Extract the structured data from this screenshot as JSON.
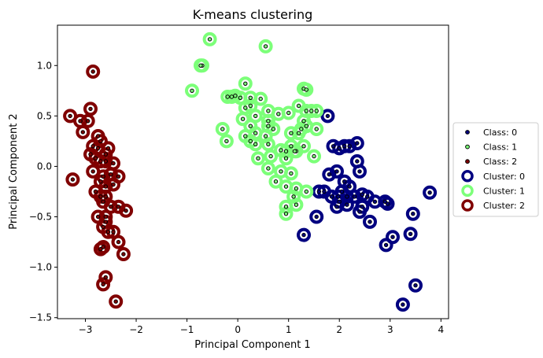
{
  "chart_data": {
    "type": "scatter",
    "title": "K-means clustering",
    "xlabel": "Principal Component 1",
    "ylabel": "Principal Component 2",
    "xlim": [
      -3.55,
      4.15
    ],
    "ylim": [
      -1.51,
      1.4
    ],
    "xticks": [
      -3,
      -2,
      -1,
      0,
      1,
      2,
      3,
      4
    ],
    "yticks": [
      -1.5,
      -1.0,
      -0.5,
      0.0,
      0.5,
      1.0
    ],
    "xtick_labels": [
      "−3",
      "−2",
      "−1",
      "0",
      "1",
      "2",
      "3",
      "4"
    ],
    "ytick_labels": [
      "−1.5",
      "−1.0",
      "−0.5",
      "0.0",
      "0.5",
      "1.0"
    ],
    "grid": false,
    "legend_position": "center-right (outside axes)",
    "legend": [
      {
        "label": "Class: 0",
        "kind": "class",
        "index": 0
      },
      {
        "label": "Class: 1",
        "kind": "class",
        "index": 1
      },
      {
        "label": "Class: 2",
        "kind": "class",
        "index": 2
      },
      {
        "label": "Cluster: 0",
        "kind": "cluster",
        "index": 0
      },
      {
        "label": "Cluster: 1",
        "kind": "cluster",
        "index": 1
      },
      {
        "label": "Cluster: 2",
        "kind": "cluster",
        "index": 2
      }
    ],
    "class_colors": [
      "#000080",
      "#7cff79",
      "#800000"
    ],
    "cluster_colors": [
      "#000080",
      "#7cff79",
      "#800000"
    ],
    "inner_edge_color": "#000000",
    "cluster_series": [
      {
        "name": "Cluster: 0",
        "points": [
          [
            1.77,
            0.5
          ],
          [
            1.88,
            0.2
          ],
          [
            2.0,
            0.18
          ],
          [
            2.1,
            0.2
          ],
          [
            2.2,
            0.2
          ],
          [
            2.35,
            0.23
          ],
          [
            1.8,
            -0.08
          ],
          [
            1.95,
            -0.05
          ],
          [
            2.1,
            -0.15
          ],
          [
            2.2,
            -0.2
          ],
          [
            2.35,
            0.05
          ],
          [
            2.4,
            -0.05
          ],
          [
            1.7,
            -0.25
          ],
          [
            1.6,
            -0.25
          ],
          [
            1.85,
            -0.3
          ],
          [
            2.0,
            -0.35
          ],
          [
            2.15,
            -0.3
          ],
          [
            2.3,
            -0.3
          ],
          [
            2.45,
            -0.28
          ],
          [
            2.55,
            -0.3
          ],
          [
            2.7,
            -0.35
          ],
          [
            1.95,
            -0.4
          ],
          [
            2.15,
            -0.38
          ],
          [
            2.4,
            -0.45
          ],
          [
            1.55,
            -0.5
          ],
          [
            2.6,
            -0.55
          ],
          [
            2.9,
            -0.35
          ],
          [
            2.95,
            -0.37
          ],
          [
            3.45,
            -0.47
          ],
          [
            3.78,
            -0.26
          ],
          [
            1.3,
            -0.68
          ],
          [
            2.45,
            -0.4
          ],
          [
            3.05,
            -0.7
          ],
          [
            2.92,
            -0.78
          ],
          [
            3.4,
            -0.67
          ],
          [
            3.5,
            -1.18
          ],
          [
            3.25,
            -1.37
          ],
          [
            1.98,
            -0.3
          ],
          [
            2.05,
            -0.25
          ]
        ]
      },
      {
        "name": "Cluster: 1",
        "points": [
          [
            -0.55,
            1.26
          ],
          [
            0.55,
            1.19
          ],
          [
            -0.7,
            1.0
          ],
          [
            -0.73,
            1.0
          ],
          [
            -0.9,
            0.75
          ],
          [
            0.15,
            0.82
          ],
          [
            1.3,
            0.77
          ],
          [
            1.35,
            0.76
          ],
          [
            -0.05,
            0.7
          ],
          [
            -0.12,
            0.69
          ],
          [
            -0.2,
            0.69
          ],
          [
            0.05,
            0.68
          ],
          [
            0.25,
            0.68
          ],
          [
            0.45,
            0.67
          ],
          [
            0.15,
            0.58
          ],
          [
            0.25,
            0.6
          ],
          [
            0.6,
            0.55
          ],
          [
            0.8,
            0.52
          ],
          [
            1.0,
            0.53
          ],
          [
            1.2,
            0.6
          ],
          [
            1.35,
            0.55
          ],
          [
            1.45,
            0.55
          ],
          [
            1.55,
            0.55
          ],
          [
            0.35,
            0.5
          ],
          [
            0.1,
            0.47
          ],
          [
            0.6,
            0.45
          ],
          [
            1.3,
            0.45
          ],
          [
            -0.3,
            0.37
          ],
          [
            0.25,
            0.4
          ],
          [
            0.6,
            0.4
          ],
          [
            0.7,
            0.37
          ],
          [
            1.25,
            0.37
          ],
          [
            1.35,
            0.4
          ],
          [
            1.55,
            0.37
          ],
          [
            0.15,
            0.3
          ],
          [
            0.35,
            0.33
          ],
          [
            0.55,
            0.3
          ],
          [
            1.05,
            0.33
          ],
          [
            1.2,
            0.33
          ],
          [
            -0.22,
            0.25
          ],
          [
            0.25,
            0.25
          ],
          [
            0.35,
            0.22
          ],
          [
            0.85,
            0.16
          ],
          [
            0.95,
            0.15
          ],
          [
            1.05,
            0.2
          ],
          [
            1.15,
            0.15
          ],
          [
            1.3,
            0.2
          ],
          [
            0.4,
            0.08
          ],
          [
            0.65,
            0.1
          ],
          [
            0.95,
            0.08
          ],
          [
            1.12,
            0.15
          ],
          [
            0.6,
            -0.02
          ],
          [
            0.85,
            -0.05
          ],
          [
            1.05,
            -0.07
          ],
          [
            0.75,
            -0.15
          ],
          [
            0.95,
            -0.2
          ],
          [
            1.15,
            -0.22
          ],
          [
            0.95,
            -0.4
          ],
          [
            1.1,
            -0.3
          ],
          [
            1.15,
            -0.38
          ],
          [
            1.35,
            -0.25
          ],
          [
            0.95,
            -0.47
          ],
          [
            1.5,
            0.1
          ],
          [
            0.6,
            0.22
          ]
        ]
      },
      {
        "name": "Cluster: 2",
        "points": [
          [
            -2.85,
            0.94
          ],
          [
            -3.3,
            0.5
          ],
          [
            -2.9,
            0.57
          ],
          [
            -3.1,
            0.45
          ],
          [
            -2.95,
            0.45
          ],
          [
            -3.05,
            0.34
          ],
          [
            -2.75,
            0.3
          ],
          [
            -2.7,
            0.25
          ],
          [
            -2.85,
            0.2
          ],
          [
            -2.75,
            0.18
          ],
          [
            -2.6,
            0.12
          ],
          [
            -2.55,
            0.18
          ],
          [
            -2.9,
            0.12
          ],
          [
            -2.8,
            0.08
          ],
          [
            -2.7,
            0.05
          ],
          [
            -2.6,
            0.05
          ],
          [
            -2.45,
            0.03
          ],
          [
            -2.35,
            -0.1
          ],
          [
            -2.5,
            -0.08
          ],
          [
            -2.65,
            -0.1
          ],
          [
            -2.7,
            -0.15
          ],
          [
            -2.6,
            -0.2
          ],
          [
            -2.45,
            -0.18
          ],
          [
            -2.8,
            -0.25
          ],
          [
            -2.7,
            -0.3
          ],
          [
            -2.6,
            -0.3
          ],
          [
            -2.65,
            -0.35
          ],
          [
            -2.5,
            -0.4
          ],
          [
            -2.35,
            -0.4
          ],
          [
            -2.2,
            -0.44
          ],
          [
            -2.75,
            -0.5
          ],
          [
            -2.6,
            -0.5
          ],
          [
            -3.25,
            -0.13
          ],
          [
            -2.85,
            -0.05
          ],
          [
            -2.6,
            -0.55
          ],
          [
            -2.65,
            -0.6
          ],
          [
            -2.55,
            -0.65
          ],
          [
            -2.45,
            -0.65
          ],
          [
            -2.35,
            -0.75
          ],
          [
            -2.7,
            -0.82
          ],
          [
            -2.65,
            -0.8
          ],
          [
            -2.25,
            -0.87
          ],
          [
            -2.6,
            -1.1
          ],
          [
            -2.65,
            -1.17
          ],
          [
            -2.4,
            -1.34
          ]
        ]
      }
    ],
    "class_series": [
      {
        "name": "Class: 0",
        "points": []
      },
      {
        "name": "Class: 1",
        "points": []
      },
      {
        "name": "Class: 2",
        "points": []
      }
    ]
  }
}
